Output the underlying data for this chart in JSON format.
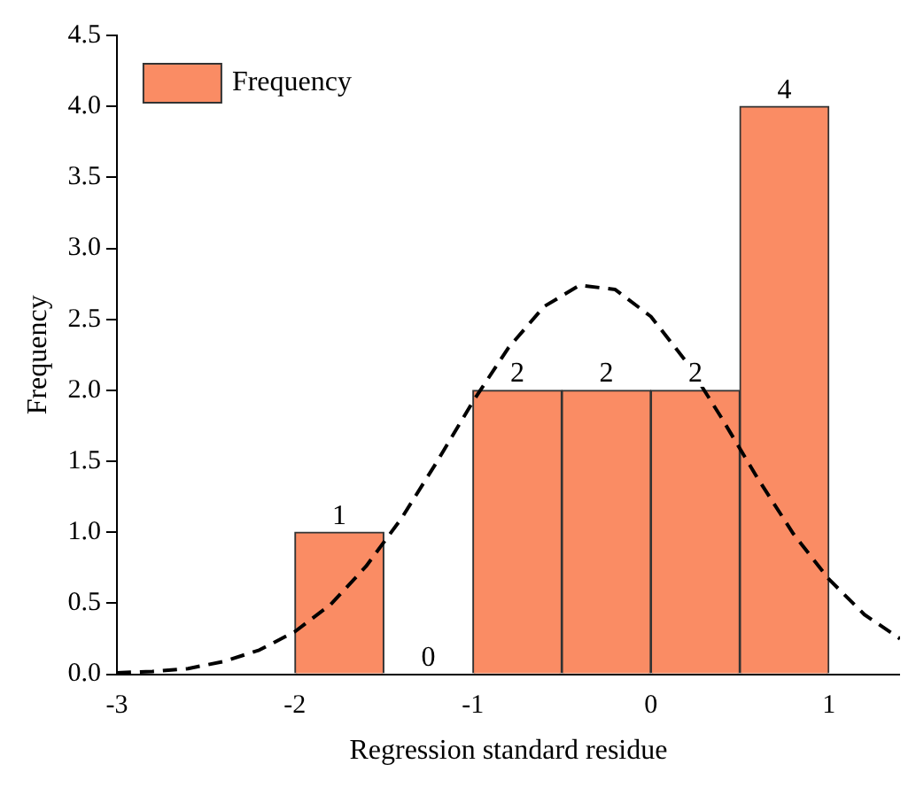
{
  "chart_data": {
    "type": "histogram",
    "xlabel": "Regression standard residue",
    "ylabel": "Frequency",
    "bins": [
      -2,
      -1.5,
      -1,
      -0.5,
      0,
      0.5,
      1
    ],
    "series": [
      {
        "name": "Frequency",
        "color": "#fa8c64",
        "values": [
          1,
          0,
          2,
          2,
          2,
          4
        ],
        "value_labels": [
          "1",
          "0",
          "2",
          "2",
          "2",
          "4"
        ]
      },
      {
        "type": "line",
        "color": "#000000",
        "line_style": "dashed",
        "marker": "none",
        "x": [
          -3,
          -2.8,
          -2.6,
          -2.4,
          -2.2,
          -2,
          -1.8,
          -1.6,
          -1.4,
          -1.2,
          -1,
          -0.8,
          -0.6,
          -0.4,
          -0.2,
          0,
          0.2,
          0.4,
          0.6,
          0.8,
          1,
          1.2,
          1.4
        ],
        "values": [
          0.01,
          0.02,
          0.04,
          0.09,
          0.17,
          0.3,
          0.49,
          0.76,
          1.1,
          1.5,
          1.92,
          2.3,
          2.59,
          2.74,
          2.71,
          2.52,
          2.2,
          1.8,
          1.38,
          0.99,
          0.67,
          0.42,
          0.25
        ]
      }
    ],
    "xlim": [
      -3,
      1.4
    ],
    "xticks": [
      -3,
      -2,
      -1,
      0,
      1
    ],
    "ylim": [
      0,
      4.5
    ],
    "yticks": [
      {
        "value": 0,
        "label": "0.0"
      },
      {
        "value": 0.5,
        "label": "0.5"
      },
      {
        "value": 1,
        "label": "1.0"
      },
      {
        "value": 1.5,
        "label": "1.5"
      },
      {
        "value": 2,
        "label": "2.0"
      },
      {
        "value": 2.5,
        "label": "2.5"
      },
      {
        "value": 3,
        "label": "3.0"
      },
      {
        "value": 3.5,
        "label": "3.5"
      },
      {
        "value": 4,
        "label": "4.0"
      },
      {
        "value": 4.5,
        "label": "4.5"
      }
    ],
    "grid": false,
    "legend": "top left"
  }
}
